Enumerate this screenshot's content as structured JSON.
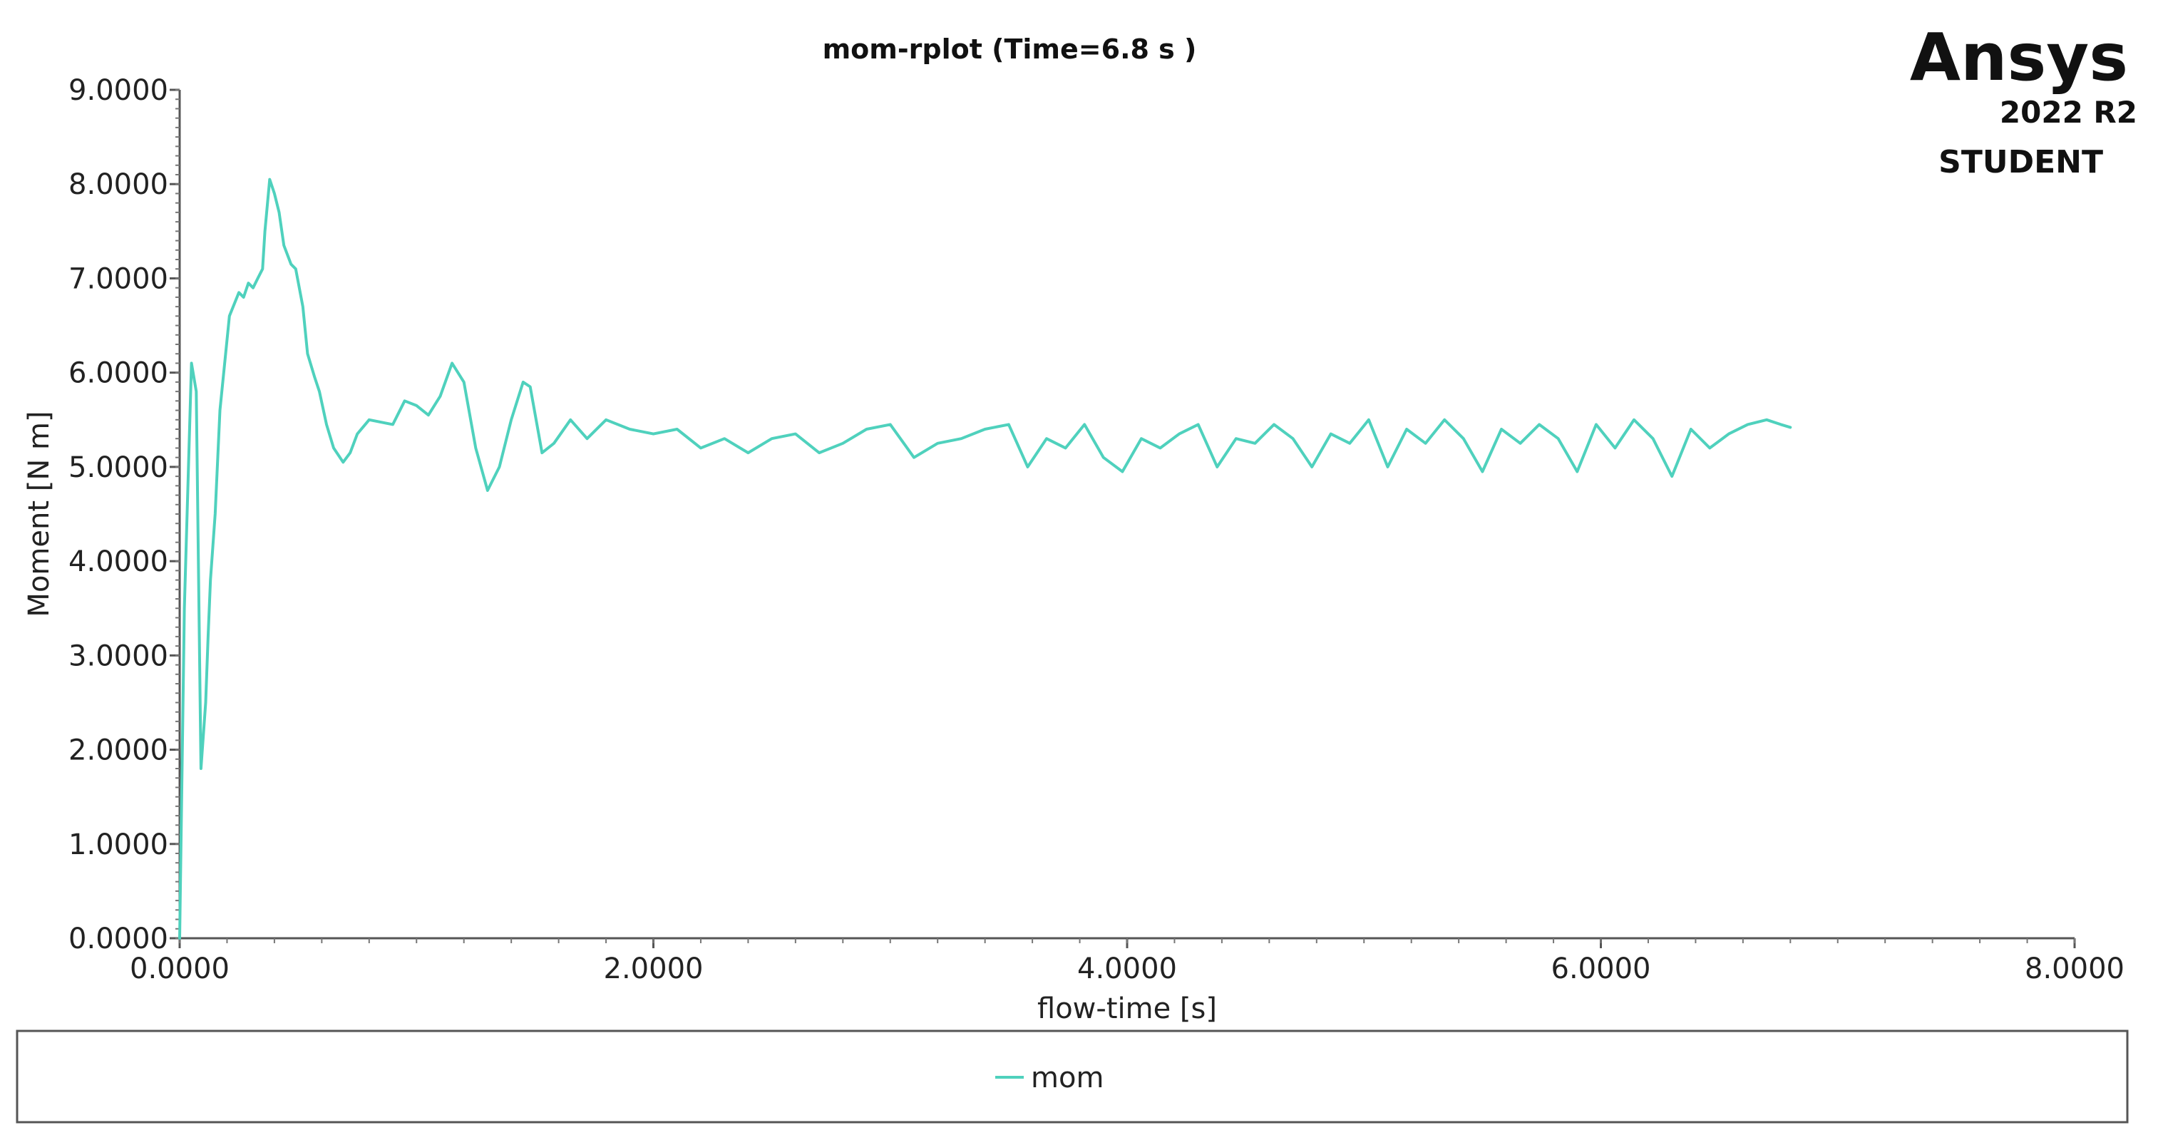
{
  "chart_data": {
    "type": "line",
    "title": "mom-rplot (Time=6.8  s )",
    "xlabel": "flow-time [s]",
    "ylabel": "Moment [N m]",
    "xlim": [
      0,
      8
    ],
    "ylim": [
      0,
      9
    ],
    "x_ticks": [
      "0.0000",
      "2.0000",
      "4.0000",
      "6.0000",
      "8.0000"
    ],
    "y_ticks": [
      "0.0000",
      "1.0000",
      "2.0000",
      "3.0000",
      "4.0000",
      "5.0000",
      "6.0000",
      "7.0000",
      "8.0000",
      "9.0000"
    ],
    "legend_position": "bottom",
    "grid": false,
    "series": [
      {
        "name": "mom",
        "color": "#4fd1bd",
        "x": [
          0.0,
          0.02,
          0.05,
          0.07,
          0.09,
          0.11,
          0.12,
          0.13,
          0.15,
          0.17,
          0.21,
          0.25,
          0.27,
          0.29,
          0.31,
          0.33,
          0.35,
          0.36,
          0.38,
          0.4,
          0.42,
          0.44,
          0.47,
          0.49,
          0.52,
          0.54,
          0.57,
          0.59,
          0.62,
          0.65,
          0.69,
          0.72,
          0.75,
          0.8,
          0.9,
          0.95,
          1.0,
          1.05,
          1.1,
          1.15,
          1.2,
          1.25,
          1.3,
          1.35,
          1.4,
          1.45,
          1.48,
          1.53,
          1.58,
          1.65,
          1.72,
          1.8,
          1.9,
          2.0,
          2.1,
          2.2,
          2.3,
          2.4,
          2.5,
          2.6,
          2.7,
          2.8,
          2.9,
          3.0,
          3.1,
          3.2,
          3.3,
          3.4,
          3.5,
          3.58,
          3.66,
          3.74,
          3.82,
          3.9,
          3.98,
          4.06,
          4.14,
          4.22,
          4.3,
          4.38,
          4.46,
          4.54,
          4.62,
          4.7,
          4.78,
          4.86,
          4.94,
          5.02,
          5.1,
          5.18,
          5.26,
          5.34,
          5.42,
          5.5,
          5.58,
          5.66,
          5.74,
          5.82,
          5.9,
          5.98,
          6.06,
          6.14,
          6.22,
          6.3,
          6.38,
          6.46,
          6.54,
          6.62,
          6.7,
          6.76,
          6.8
        ],
        "values": [
          0.0,
          3.5,
          6.1,
          5.8,
          1.8,
          2.5,
          3.2,
          3.8,
          4.5,
          5.6,
          6.6,
          6.85,
          6.8,
          6.95,
          6.9,
          7.0,
          7.1,
          7.5,
          8.05,
          7.9,
          7.7,
          7.35,
          7.15,
          7.1,
          6.7,
          6.2,
          5.95,
          5.8,
          5.45,
          5.2,
          5.05,
          5.15,
          5.35,
          5.5,
          5.45,
          5.7,
          5.65,
          5.55,
          5.75,
          6.1,
          5.9,
          5.2,
          4.75,
          5.0,
          5.5,
          5.9,
          5.85,
          5.15,
          5.25,
          5.5,
          5.3,
          5.5,
          5.4,
          5.35,
          5.4,
          5.2,
          5.3,
          5.15,
          5.3,
          5.35,
          5.15,
          5.25,
          5.4,
          5.45,
          5.1,
          5.25,
          5.3,
          5.4,
          5.45,
          5.0,
          5.3,
          5.2,
          5.45,
          5.1,
          4.95,
          5.3,
          5.2,
          5.35,
          5.45,
          5.0,
          5.3,
          5.25,
          5.45,
          5.3,
          5.0,
          5.35,
          5.25,
          5.5,
          5.0,
          5.4,
          5.25,
          5.5,
          5.3,
          4.95,
          5.4,
          5.25,
          5.45,
          5.3,
          4.95,
          5.45,
          5.2,
          5.5,
          5.3,
          4.9,
          5.4,
          5.2,
          5.35,
          5.45,
          5.5,
          5.45,
          5.42
        ]
      }
    ]
  },
  "branding": {
    "name": "Ansys",
    "version": "2022 R2",
    "edition": "STUDENT"
  },
  "legend": {
    "label": "mom",
    "line_color": "#4fd1bd"
  }
}
